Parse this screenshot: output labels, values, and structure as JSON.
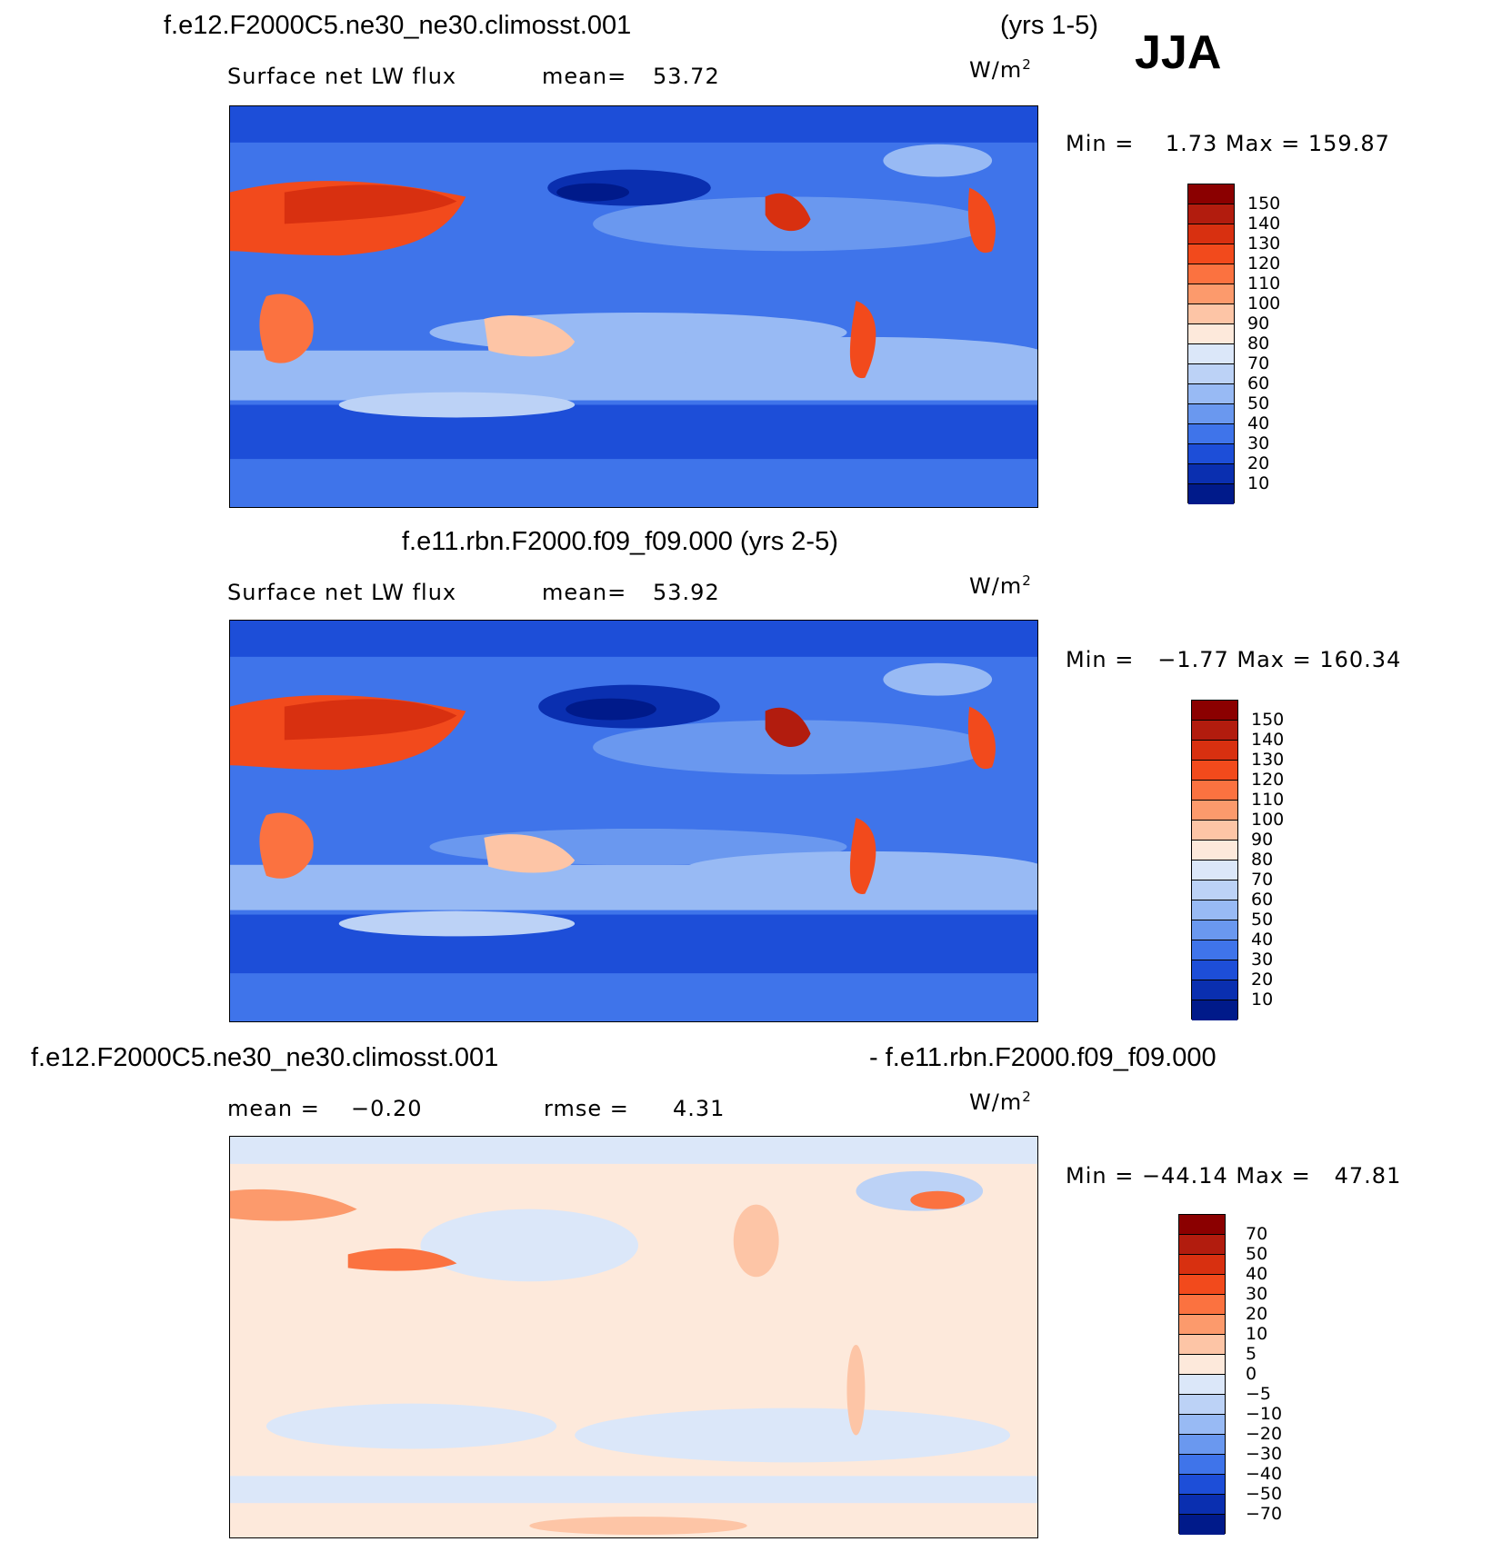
{
  "season": "JJA",
  "units_label": "W/m",
  "units_sup": "2",
  "panels": [
    {
      "case_title": "f.e12.F2000C5.ne30_ne30.climosst.001",
      "years": "(yrs 1-5)",
      "variable": "Surface net LW flux",
      "stat_label": "mean=",
      "stat_value": "53.72",
      "minmax": "Min =    1.73 Max = 159.87",
      "colorbar": {
        "labels": [
          "150",
          "140",
          "130",
          "120",
          "110",
          "100",
          "90",
          "80",
          "70",
          "60",
          "50",
          "40",
          "30",
          "20",
          "10"
        ],
        "colors": [
          "#8b0000",
          "#b21c0e",
          "#d83010",
          "#f24a1c",
          "#fb7240",
          "#fc9a6c",
          "#fdc5a6",
          "#fde9db",
          "#dbe7f9",
          "#bcd2f6",
          "#98baf4",
          "#6a98ef",
          "#3f74ea",
          "#1d4ed8",
          "#0a2fb0",
          "#001a8a"
        ]
      }
    },
    {
      "case_title": "f.e11.rbn.F2000.f09_f09.000 (yrs 2-5)",
      "variable": "Surface net LW flux",
      "stat_label": "mean=",
      "stat_value": "53.92",
      "minmax": "Min =   −1.77 Max = 160.34",
      "colorbar": {
        "labels": [
          "150",
          "140",
          "130",
          "120",
          "110",
          "100",
          "90",
          "80",
          "70",
          "60",
          "50",
          "40",
          "30",
          "20",
          "10"
        ],
        "colors": [
          "#8b0000",
          "#b21c0e",
          "#d83010",
          "#f24a1c",
          "#fb7240",
          "#fc9a6c",
          "#fdc5a6",
          "#fde9db",
          "#dbe7f9",
          "#bcd2f6",
          "#98baf4",
          "#6a98ef",
          "#3f74ea",
          "#1d4ed8",
          "#0a2fb0",
          "#001a8a"
        ]
      }
    },
    {
      "case_title_left": "f.e12.F2000C5.ne30_ne30.climosst.001",
      "case_title_right": "- f.e11.rbn.F2000.f09_f09.000",
      "mean_label": "mean =",
      "mean_value": "−0.20",
      "rmse_label": "rmse =",
      "rmse_value": "4.31",
      "minmax": "Min = −44.14 Max =   47.81",
      "colorbar": {
        "labels": [
          "70",
          "50",
          "40",
          "30",
          "20",
          "10",
          "5",
          "0",
          "−5",
          "−10",
          "−20",
          "−30",
          "−40",
          "−50",
          "−70"
        ],
        "colors": [
          "#8b0000",
          "#b21c0e",
          "#d83010",
          "#f24a1c",
          "#fb7240",
          "#fc9a6c",
          "#fdc5a6",
          "#fde9db",
          "#dbe7f9",
          "#bcd2f6",
          "#98baf4",
          "#6a98ef",
          "#3f74ea",
          "#1d4ed8",
          "#0a2fb0",
          "#001a8a"
        ]
      }
    }
  ]
}
